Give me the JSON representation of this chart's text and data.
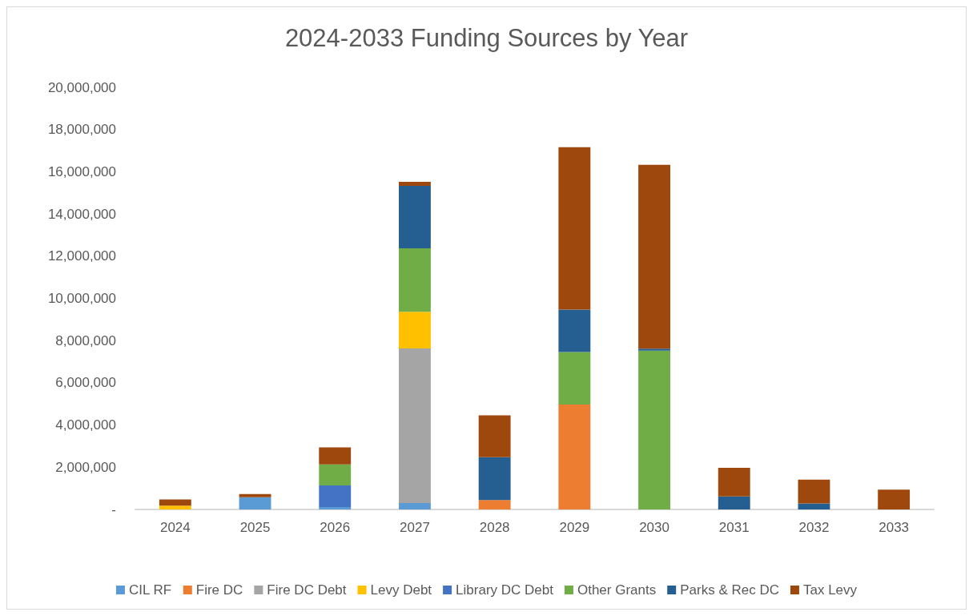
{
  "chart_data": {
    "type": "bar",
    "title": "2024-2033 Funding Sources by Year",
    "stacked": true,
    "grid": false,
    "legend": "bottom",
    "categories": [
      "2024",
      "2025",
      "2026",
      "2027",
      "2028",
      "2029",
      "2030",
      "2031",
      "2032",
      "2033"
    ],
    "ylim": [
      0,
      20000000
    ],
    "yticks": [
      {
        "value": 0,
        "label": "-"
      },
      {
        "value": 2000000,
        "label": "2,000,000"
      },
      {
        "value": 4000000,
        "label": "4,000,000"
      },
      {
        "value": 6000000,
        "label": "6,000,000"
      },
      {
        "value": 8000000,
        "label": "8,000,000"
      },
      {
        "value": 10000000,
        "label": "10,000,000"
      },
      {
        "value": 12000000,
        "label": "12,000,000"
      },
      {
        "value": 14000000,
        "label": "14,000,000"
      },
      {
        "value": 16000000,
        "label": "16,000,000"
      },
      {
        "value": 18000000,
        "label": "18,000,000"
      },
      {
        "value": 20000000,
        "label": "20,000,000"
      }
    ],
    "series": [
      {
        "name": "CIL RF",
        "color": "#5b9bd5",
        "values": [
          null,
          580000,
          110000,
          300000,
          null,
          null,
          null,
          null,
          null,
          null
        ]
      },
      {
        "name": "Fire DC",
        "color": "#ed7d31",
        "values": [
          null,
          null,
          null,
          null,
          450000,
          4970000,
          null,
          null,
          null,
          null
        ]
      },
      {
        "name": "Fire DC Debt",
        "color": "#a5a5a5",
        "values": [
          null,
          null,
          null,
          7330000,
          null,
          null,
          null,
          null,
          null,
          null
        ]
      },
      {
        "name": "Levy Debt",
        "color": "#ffc000",
        "values": [
          180000,
          null,
          null,
          1730000,
          null,
          null,
          null,
          null,
          null,
          null
        ]
      },
      {
        "name": "Library DC Debt",
        "color": "#4472c4",
        "values": [
          null,
          null,
          1030000,
          null,
          null,
          null,
          null,
          null,
          null,
          null
        ]
      },
      {
        "name": "Other Grants",
        "color": "#70ad47",
        "values": [
          null,
          null,
          990000,
          3010000,
          null,
          2490000,
          7520000,
          null,
          null,
          null
        ]
      },
      {
        "name": "Parks & Rec DC",
        "color": "#255e91",
        "values": [
          null,
          null,
          null,
          2960000,
          2030000,
          2010000,
          100000,
          620000,
          280000,
          null
        ]
      },
      {
        "name": "Tax Levy",
        "color": "#9e480e",
        "values": [
          290000,
          150000,
          810000,
          190000,
          1980000,
          7690000,
          8710000,
          1350000,
          1130000,
          940000
        ]
      }
    ]
  }
}
